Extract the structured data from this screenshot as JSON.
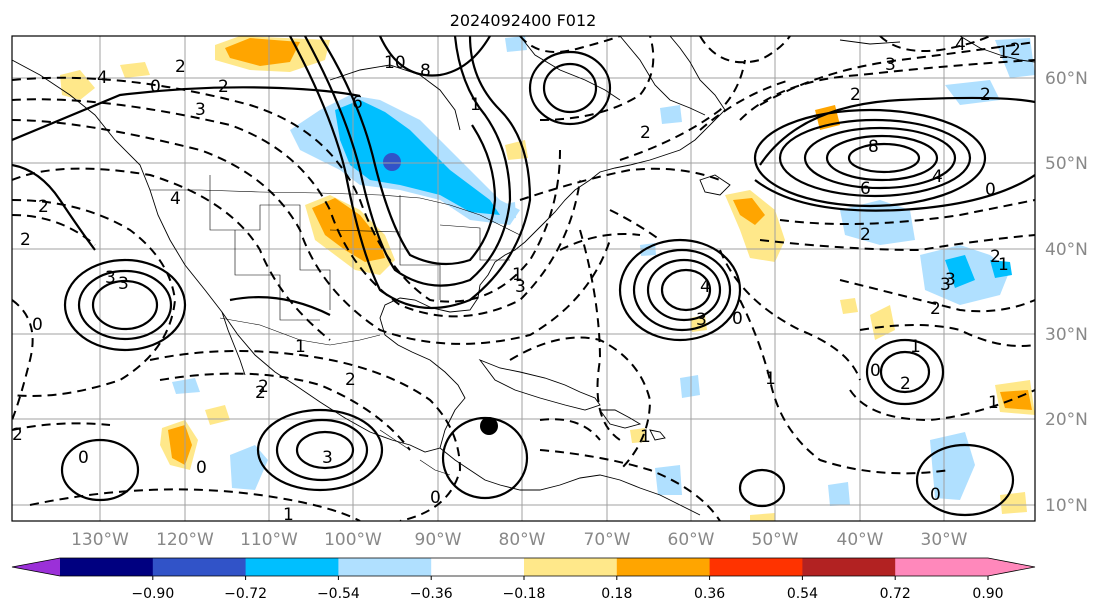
{
  "title": "2024092400 F012",
  "map": {
    "lat_labels": [
      "60°N",
      "50°N",
      "40°N",
      "30°N",
      "20°N",
      "10°N"
    ],
    "lon_labels": [
      "130°W",
      "120°W",
      "110°W",
      "100°W",
      "90°W",
      "80°W",
      "70°W",
      "60°W",
      "50°W",
      "40°W",
      "30°W"
    ],
    "contour_labels": [
      "10",
      "8",
      "6",
      "4",
      "3",
      "2",
      "0",
      "1",
      "2",
      "3",
      "4",
      "2",
      "1",
      "2",
      "3",
      "2",
      "2",
      "0",
      "3",
      "1",
      "2",
      "8",
      "6",
      "4",
      "0",
      "2",
      "3",
      "2",
      "3",
      "2",
      "1",
      "2",
      "0",
      "1",
      "2",
      "0",
      "1",
      "2",
      "1",
      "4",
      "3",
      "0",
      "2",
      "1",
      "0",
      "4",
      "2",
      "3",
      "1",
      "2",
      "3",
      "0",
      "0",
      "1"
    ],
    "marker": "storm-position-dot"
  },
  "colorbar": {
    "tick_labels": [
      "−0.90",
      "−0.72",
      "−0.54",
      "−0.36",
      "−0.18",
      "0.18",
      "0.36",
      "0.54",
      "0.72",
      "0.90"
    ],
    "colors": [
      "#9b30d8",
      "#000080",
      "#3153c8",
      "#00bfff",
      "#b0e0ff",
      "#ffffff",
      "#ffe88a",
      "#ffa500",
      "#ff3300",
      "#b22222",
      "#ff88bb"
    ]
  }
}
